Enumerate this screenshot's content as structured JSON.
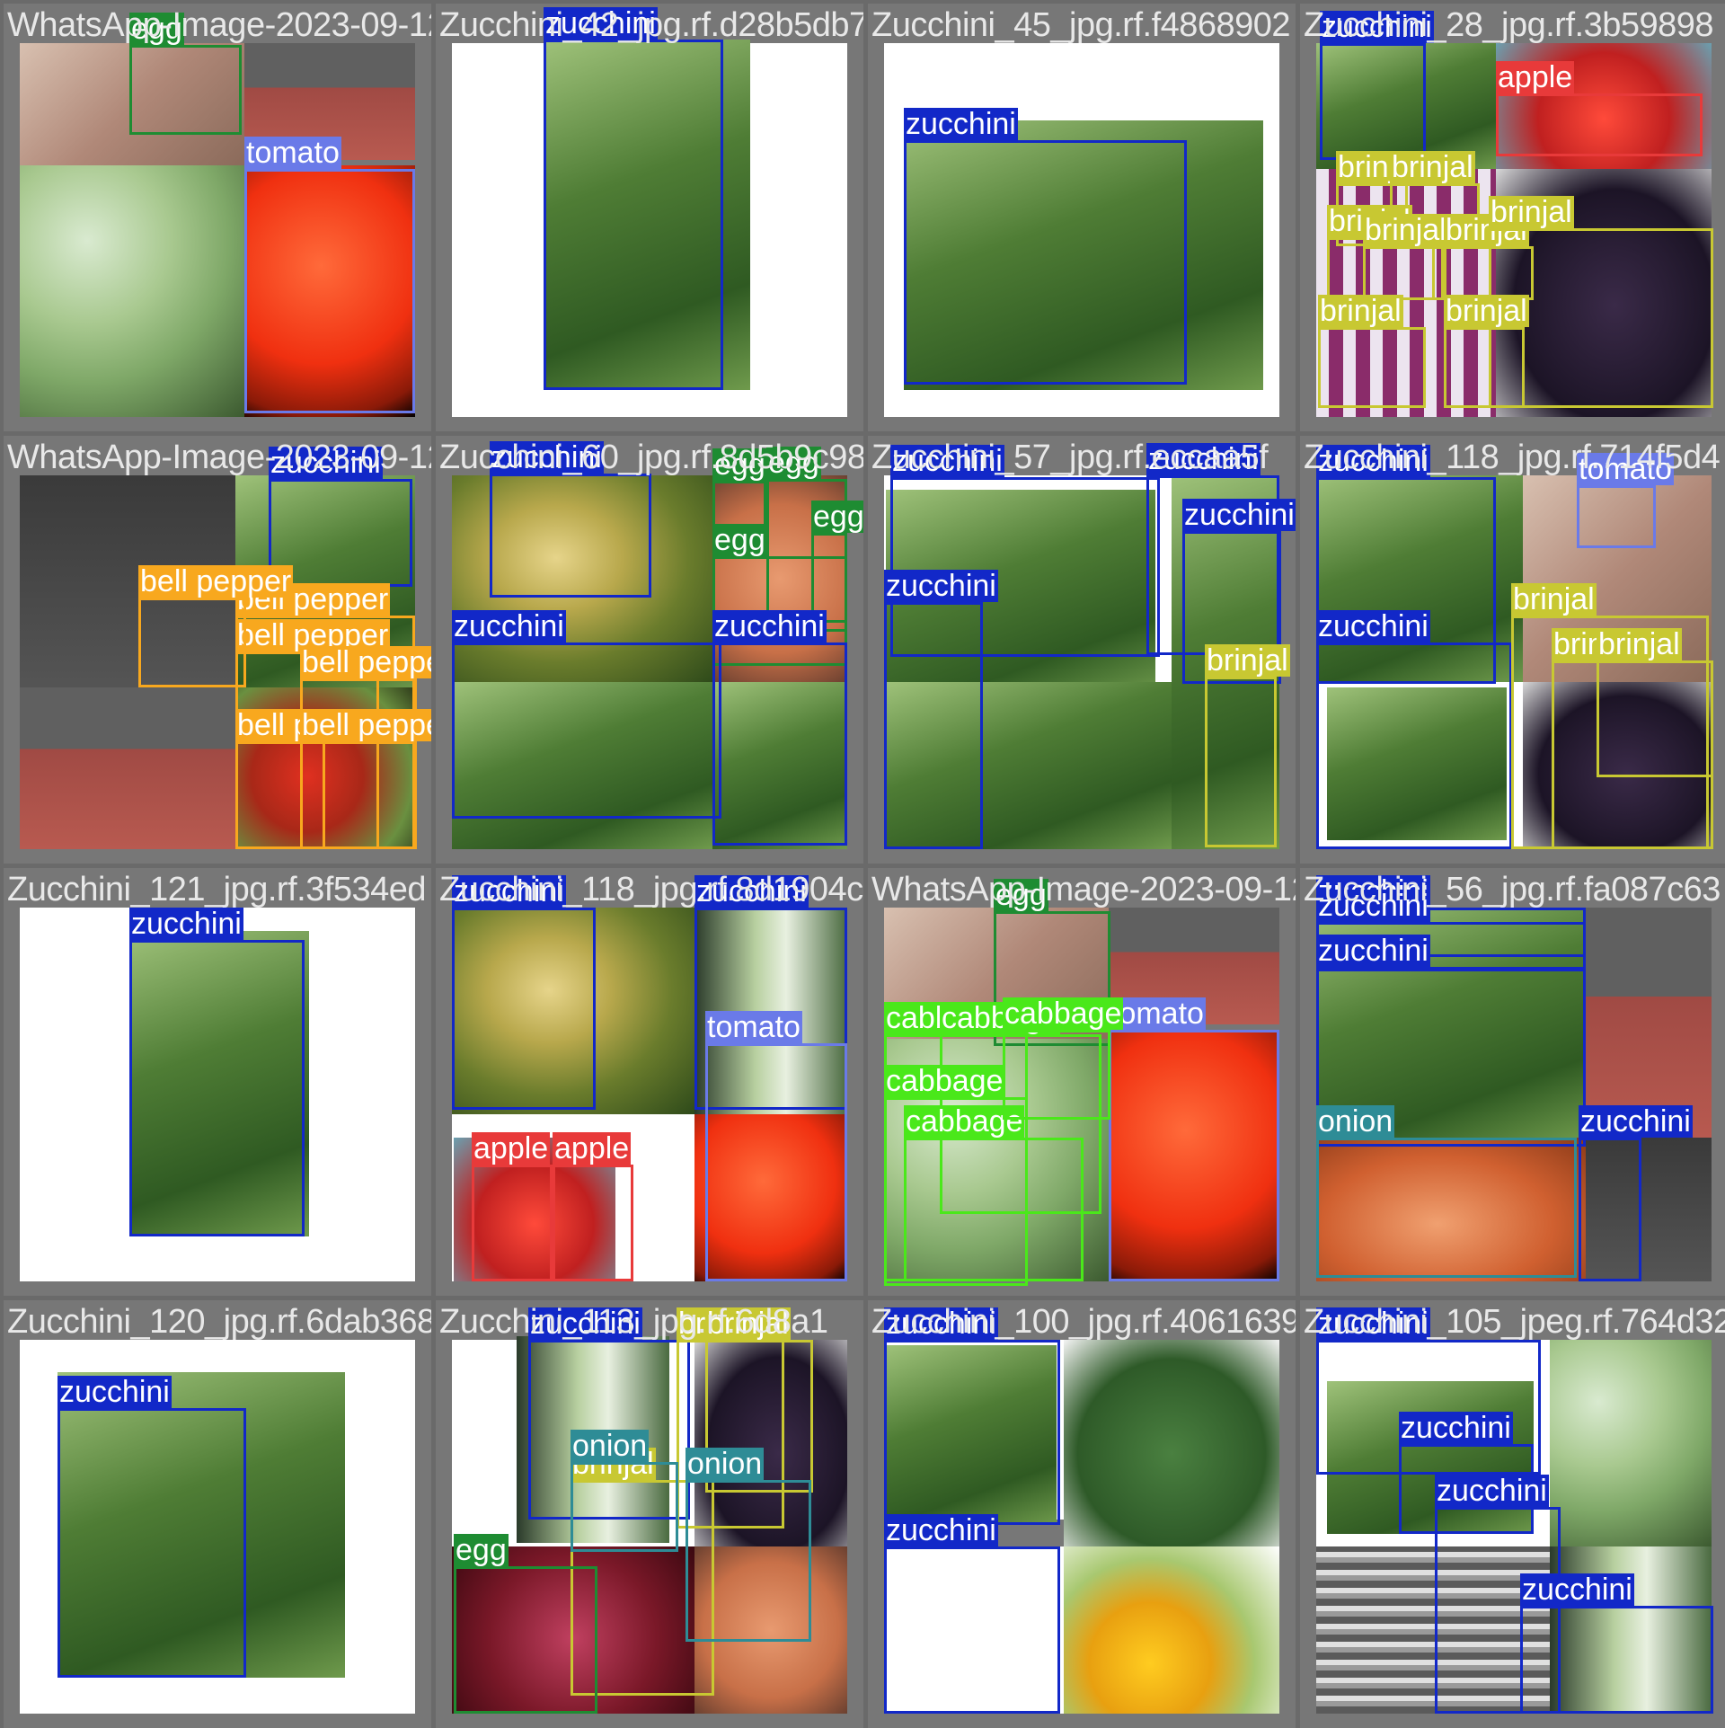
{
  "colors": {
    "zucchini": "#1228c8",
    "egg": "#1e8c32",
    "tomato": "#6a7ae8",
    "apple": "#e83a3a",
    "brinjal": "#c8c832",
    "bell pepper": "#f8a81e",
    "cabbage": "#4ae81a",
    "onion": "#2e8c96"
  },
  "tiles": [
    {
      "filename": "WhatsApp-Image-2023-09-12-at-5-20-49-PM_jpeg.rf.6814210",
      "labels": [
        "egg",
        "tomato"
      ]
    },
    {
      "filename": "Zucchini_42_jpg.rf.d28b5db7b4d50aa1b95b",
      "labels": [
        "zucchini"
      ]
    },
    {
      "filename": "Zucchini_45_jpg.rf.f4868902",
      "labels": [
        "zucchini"
      ]
    },
    {
      "filename": "Zucchini_28_jpg.rf.3b59898",
      "labels": [
        "zucchini",
        "apple",
        "brinjal",
        "brinjal",
        "brinjal",
        "brinjal",
        "brinjal",
        "brinjal",
        "brinjal",
        "brinjal"
      ]
    },
    {
      "filename": "WhatsApp-Image-2023-09-12-at-5-20-49-PM_jpeg.rf.8d5",
      "labels": [
        "zucchini",
        "bell pepper",
        "bell pepper",
        "bell pepper",
        "bell pepper",
        "bell pepper",
        "bell pepper"
      ]
    },
    {
      "filename": "Zucchini_60_jpg.rf.8d5b9c9818c",
      "labels": [
        "zucchini",
        "egg",
        "egg",
        "egg",
        "egg",
        "zucchini",
        "zucchini"
      ]
    },
    {
      "filename": "Zucchini_57_jpg.rf.eccaa5f",
      "labels": [
        "zucchini",
        "zucchini",
        "zucchini",
        "zucchini",
        "brinjal"
      ]
    },
    {
      "filename": "Zucchini_118_jpg.rf.714f5d4",
      "labels": [
        "zucchini",
        "tomato",
        "zucchini",
        "brinjal",
        "brinjal",
        "brinjal"
      ]
    },
    {
      "filename": "Zucchini_121_jpg.rf.3f534ed",
      "labels": [
        "zucchini"
      ]
    },
    {
      "filename": "Zucchini_118_jpg.rf.8d1904c",
      "labels": [
        "zucchini",
        "zucchini",
        "tomato",
        "apple",
        "apple"
      ]
    },
    {
      "filename": "WhatsApp-Image-2023-09-12-at-5-20-49-PM_jpeg",
      "labels": [
        "egg",
        "cabbage",
        "cabbage",
        "tomato",
        "cabbage",
        "cabbage",
        "cabbage"
      ]
    },
    {
      "filename": "Zucchini_56_jpg.rf.fa087c63",
      "labels": [
        "zucchini",
        "zucchini",
        "zucchini",
        "onion",
        "zucchini"
      ]
    },
    {
      "filename": "Zucchini_120_jpg.rf.6dab368",
      "labels": [
        "zucchini"
      ]
    },
    {
      "filename": "Zucchini_113_jpg.rf.6d8a1",
      "labels": [
        "zucchini",
        "brinjal",
        "brinjal",
        "brinjal",
        "onion",
        "egg",
        "onion"
      ]
    },
    {
      "filename": "Zucchini_100_jpg.rf.4061639",
      "labels": [
        "zucchini",
        "zucchini"
      ]
    },
    {
      "filename": "Zucchini_105_jpeg.rf.764d32",
      "labels": [
        "zucchini",
        "zucchini",
        "zucchini",
        "zucchini"
      ]
    }
  ]
}
